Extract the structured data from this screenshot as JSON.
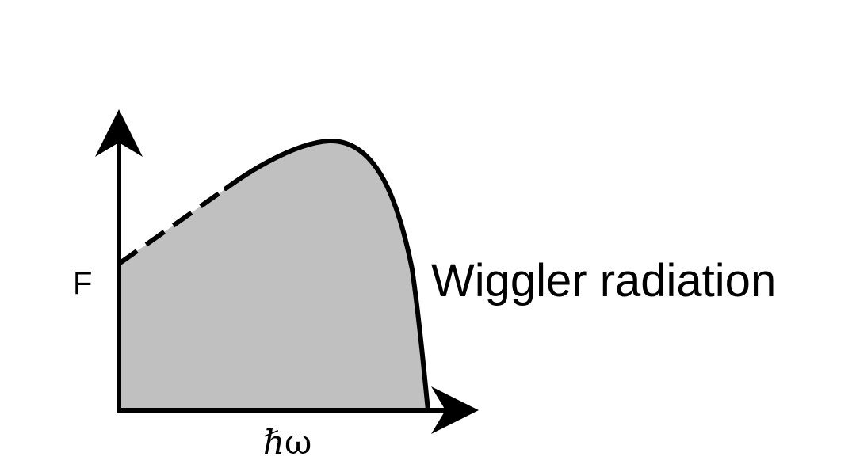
{
  "diagram": {
    "y_axis_label": "F",
    "x_axis_label": "ℏω",
    "curve_label": "Wiggler radiation",
    "fill_color": "#c0c0c0",
    "stroke_color": "#000000"
  }
}
